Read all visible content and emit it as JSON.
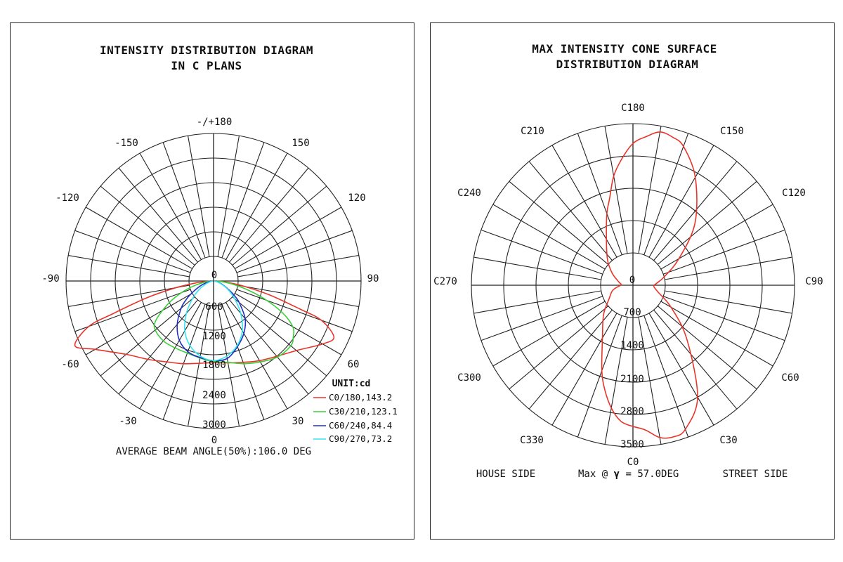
{
  "colors": {
    "c0_180": "#e8352b",
    "c30_210": "#3ccf3c",
    "c60_240": "#1f2fc2",
    "c90_270": "#35e6f0"
  },
  "chart_data": [
    {
      "type": "polar-line",
      "title_line1": "INTENSITY DISTRIBUTION DIAGRAM",
      "title_line2": "IN C PLANS",
      "angle_labels": {
        "top": "-/+180",
        "a_m150": "-150",
        "a_150": "150",
        "a_m120": "-120",
        "a_120": "120",
        "a_m90": "-90",
        "a_90": "90",
        "a_m60": "-60",
        "a_60": "60",
        "a_m30": "-30",
        "a_30": "30",
        "bottom": "0"
      },
      "radial_ticks": [
        "0",
        "600",
        "1200",
        "1800",
        "2400",
        "3000"
      ],
      "radial_max": 3000,
      "unit": "UNIT:cd",
      "legend": [
        "C0/180,143.2",
        "C30/210,123.1",
        "C60/240,84.4",
        "C90/270,73.2"
      ],
      "footer": "AVERAGE BEAM ANGLE(50%):106.0 DEG",
      "series": [
        {
          "name": "C0/180",
          "color_key": "c0_180",
          "gamma": [
            0,
            10,
            20,
            30,
            40,
            50,
            60,
            65,
            70,
            72,
            76,
            80,
            84,
            88,
            90
          ],
          "right": [
            1660,
            1690,
            1760,
            1870,
            2000,
            2200,
            2560,
            2700,
            2330,
            1850,
            1180,
            650,
            310,
            90,
            20
          ],
          "left": [
            1660,
            1700,
            1790,
            1900,
            2080,
            2320,
            2780,
            3110,
            2700,
            2150,
            1380,
            760,
            350,
            110,
            20
          ]
        },
        {
          "name": "C30/210",
          "color_key": "c30_210",
          "gamma": [
            0,
            10,
            20,
            30,
            40,
            50,
            55,
            60,
            65,
            70,
            75,
            80,
            85,
            90
          ],
          "right": [
            1640,
            1680,
            1790,
            1900,
            2020,
            2050,
            1980,
            1860,
            1560,
            1150,
            750,
            420,
            190,
            30
          ],
          "left": [
            1640,
            1590,
            1560,
            1570,
            1590,
            1550,
            1450,
            1200,
            950,
            700,
            460,
            260,
            110,
            20
          ]
        },
        {
          "name": "C60/240",
          "color_key": "c60_240",
          "gamma": [
            0,
            10,
            20,
            30,
            40,
            50,
            55,
            60,
            70,
            80,
            90
          ],
          "right": [
            1620,
            1600,
            1420,
            1230,
            1000,
            680,
            520,
            360,
            170,
            60,
            10
          ],
          "left": [
            1620,
            1580,
            1530,
            1390,
            1150,
            860,
            700,
            540,
            280,
            90,
            10
          ]
        },
        {
          "name": "C90/270",
          "color_key": "c90_270",
          "gamma": [
            0,
            10,
            20,
            30,
            40,
            50,
            60,
            70,
            80,
            90
          ],
          "right": [
            1620,
            1550,
            1400,
            1170,
            860,
            560,
            330,
            150,
            50,
            10
          ],
          "left": [
            1620,
            1550,
            1400,
            1170,
            860,
            560,
            330,
            150,
            50,
            10
          ]
        }
      ]
    },
    {
      "type": "polar-line",
      "title_line1": "MAX INTENSITY CONE SURFACE",
      "title_line2": "DISTRIBUTION DIAGRAM",
      "angle_labels": {
        "c180": "C180",
        "c150": "C150",
        "c120": "C120",
        "c90": "C90",
        "c60": "C60",
        "c30": "C30",
        "c0": "C0",
        "c330": "C330",
        "c300": "C300",
        "c270": "C270",
        "c240": "C240",
        "c210": "C210"
      },
      "radial_ticks": [
        "0",
        "700",
        "1400",
        "2100",
        "2800",
        "3500"
      ],
      "radial_max": 3500,
      "footer_left": "HOUSE SIDE",
      "footer_mid_prefix": "Max @",
      "footer_mid_symbol": "γ",
      "footer_mid_suffix": " = 57.0DEG",
      "footer_right": "STREET SIDE",
      "series": [
        {
          "name": "gamma 57.0",
          "color_key": "c0_180",
          "c": [
            0,
            5,
            10,
            15,
            20,
            30,
            45,
            60,
            75,
            85,
            90,
            95,
            105,
            120,
            135,
            150,
            160,
            165,
            170,
            175,
            180
          ],
          "right": [
            3060,
            3150,
            3350,
            3400,
            3320,
            2800,
            1650,
            950,
            560,
            460,
            460,
            520,
            700,
            1150,
            1900,
            2700,
            3200,
            3320,
            3370,
            3230,
            3070
          ],
          "left": [
            3060,
            2960,
            2700,
            2350,
            1970,
            1320,
            900,
            600,
            460,
            320,
            260,
            260,
            330,
            520,
            780,
            1150,
            1650,
            1950,
            2400,
            2750,
            3070
          ]
        }
      ]
    }
  ]
}
